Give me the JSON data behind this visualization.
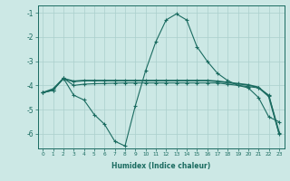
{
  "xlabel": "Humidex (Indice chaleur)",
  "bg_color": "#cce8e5",
  "grid_color": "#aacfcc",
  "line_color": "#1a6b60",
  "xlim": [
    -0.5,
    23.5
  ],
  "ylim": [
    -6.6,
    -0.7
  ],
  "yticks": [
    -1,
    -2,
    -3,
    -4,
    -5,
    -6
  ],
  "xticks": [
    0,
    1,
    2,
    3,
    4,
    5,
    6,
    7,
    8,
    9,
    10,
    11,
    12,
    13,
    14,
    15,
    16,
    17,
    18,
    19,
    20,
    21,
    22,
    23
  ],
  "line1_x": [
    0,
    1,
    2,
    3,
    4,
    5,
    6,
    7,
    8,
    9,
    10,
    11,
    12,
    13,
    14,
    15,
    16,
    17,
    18,
    19,
    20,
    21,
    22,
    23
  ],
  "line1_y": [
    -4.3,
    -4.2,
    -3.7,
    -4.4,
    -4.6,
    -5.2,
    -5.6,
    -6.3,
    -6.5,
    -4.85,
    -3.4,
    -2.2,
    -1.3,
    -1.05,
    -1.3,
    -2.4,
    -3.0,
    -3.5,
    -3.8,
    -4.0,
    -4.1,
    -4.5,
    -5.3,
    -5.5
  ],
  "line2_x": [
    0,
    1,
    2,
    3,
    4,
    5,
    6,
    7,
    8,
    9,
    10,
    11,
    12,
    13,
    14,
    15,
    16,
    17,
    18,
    19,
    20,
    21,
    22,
    23
  ],
  "line2_y": [
    -4.3,
    -4.2,
    -3.7,
    -4.0,
    -3.95,
    -3.93,
    -3.92,
    -3.91,
    -3.9,
    -3.9,
    -3.9,
    -3.9,
    -3.9,
    -3.9,
    -3.9,
    -3.9,
    -3.9,
    -3.9,
    -3.95,
    -4.0,
    -4.05,
    -4.1,
    -4.4,
    -6.0
  ],
  "line3_x": [
    0,
    1,
    2,
    3,
    4,
    5,
    6,
    7,
    8,
    9,
    10,
    11,
    12,
    13,
    14,
    15,
    16,
    17,
    18,
    19,
    20,
    21,
    22,
    23
  ],
  "line3_y": [
    -4.3,
    -4.15,
    -3.72,
    -3.83,
    -3.8,
    -3.8,
    -3.8,
    -3.8,
    -3.8,
    -3.8,
    -3.8,
    -3.8,
    -3.8,
    -3.8,
    -3.8,
    -3.8,
    -3.8,
    -3.83,
    -3.88,
    -3.93,
    -3.98,
    -4.08,
    -4.45,
    -5.95
  ]
}
